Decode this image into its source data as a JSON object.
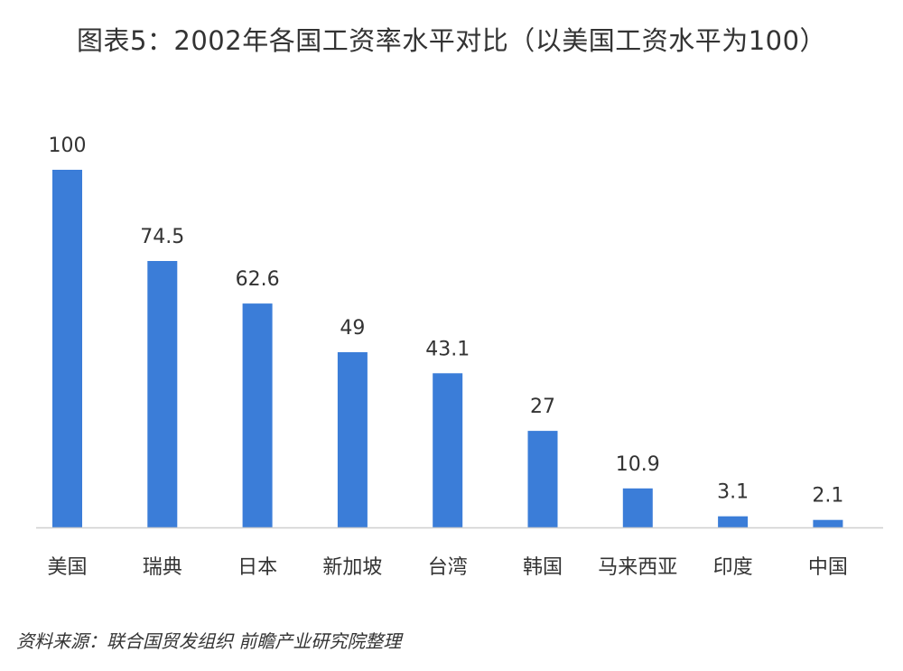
{
  "title": "图表5：2002年各国工资率水平对比（以美国工资水平为100）",
  "source": "资料来源：联合国贸发组织 前瞻产业研究院整理",
  "chart_data": {
    "type": "bar",
    "title": "图表5：2002年各国工资率水平对比（以美国工资水平为100）",
    "categories": [
      "美国",
      "瑞典",
      "日本",
      "新加坡",
      "台湾",
      "韩国",
      "马来西亚",
      "印度",
      "中国"
    ],
    "values": [
      100,
      74.5,
      62.6,
      49,
      43.1,
      27,
      10.9,
      3.1,
      2.1
    ],
    "data_labels": [
      "100",
      "74.5",
      "62.6",
      "49",
      "43.1",
      "27",
      "10.9",
      "3.1",
      "2.1"
    ],
    "xlabel": "",
    "ylabel": "",
    "ylim": [
      0,
      100
    ],
    "grid": false,
    "legend": "none",
    "bar_color": "#3b7dd8",
    "axis_color": "#cfcfcf",
    "text_color": "#333333"
  }
}
